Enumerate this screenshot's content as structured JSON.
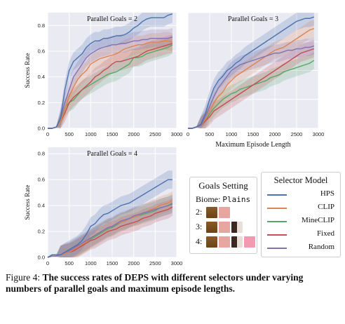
{
  "chart_data": [
    {
      "type": "line",
      "title": "Parallel Goals = 2",
      "xlabel": "",
      "ylabel": "Success Rate",
      "xlim": [
        0,
        3000
      ],
      "ylim": [
        0,
        0.9
      ],
      "xticks": [
        "0",
        "500",
        "1000",
        "1500",
        "2000",
        "2500",
        "3000"
      ],
      "yticks": [
        "0.0",
        "0.2",
        "0.4",
        "0.6",
        "0.8"
      ],
      "x": [
        0,
        100,
        200,
        300,
        400,
        500,
        600,
        700,
        800,
        900,
        1000,
        1100,
        1200,
        1300,
        1400,
        1500,
        1600,
        1700,
        1800,
        1900,
        2000,
        2100,
        2200,
        2300,
        2400,
        2500,
        2600,
        2700,
        2800,
        2900
      ],
      "series": [
        {
          "name": "HPS",
          "values": [
            0,
            0,
            0.01,
            0.08,
            0.3,
            0.45,
            0.52,
            0.55,
            0.58,
            0.63,
            0.66,
            0.68,
            0.68,
            0.7,
            0.7,
            0.71,
            0.72,
            0.72,
            0.73,
            0.75,
            0.78,
            0.8,
            0.83,
            0.85,
            0.86,
            0.86,
            0.86,
            0.86,
            0.88,
            0.89
          ]
        },
        {
          "name": "CLIP",
          "values": [
            0,
            0,
            0.01,
            0.05,
            0.15,
            0.25,
            0.32,
            0.38,
            0.42,
            0.45,
            0.5,
            0.52,
            0.54,
            0.55,
            0.56,
            0.57,
            0.58,
            0.6,
            0.62,
            0.63,
            0.64,
            0.65,
            0.65,
            0.66,
            0.67,
            0.67,
            0.67,
            0.68,
            0.68,
            0.67
          ]
        },
        {
          "name": "MineCLIP",
          "values": [
            0,
            0,
            0.01,
            0.06,
            0.16,
            0.2,
            0.22,
            0.26,
            0.3,
            0.32,
            0.34,
            0.36,
            0.38,
            0.4,
            0.42,
            0.43,
            0.44,
            0.46,
            0.48,
            0.5,
            0.55,
            0.55,
            0.56,
            0.58,
            0.59,
            0.6,
            0.61,
            0.62,
            0.63,
            0.65
          ]
        },
        {
          "name": "Fixed",
          "values": [
            0,
            0,
            0.01,
            0.05,
            0.12,
            0.2,
            0.24,
            0.27,
            0.3,
            0.33,
            0.36,
            0.4,
            0.42,
            0.45,
            0.47,
            0.5,
            0.52,
            0.52,
            0.53,
            0.54,
            0.55,
            0.56,
            0.58,
            0.6,
            0.61,
            0.62,
            0.63,
            0.64,
            0.65,
            0.66
          ]
        },
        {
          "name": "Random",
          "values": [
            0,
            0,
            0.01,
            0.08,
            0.2,
            0.3,
            0.4,
            0.45,
            0.5,
            0.55,
            0.58,
            0.6,
            0.62,
            0.63,
            0.64,
            0.65,
            0.65,
            0.66,
            0.66,
            0.67,
            0.68,
            0.68,
            0.69,
            0.69,
            0.7,
            0.7,
            0.7,
            0.7,
            0.7,
            0.71
          ]
        }
      ]
    },
    {
      "type": "line",
      "title": "Parallel Goals = 3",
      "xlabel": "Maximum Episode Length",
      "ylabel": "",
      "xlim": [
        0,
        3000
      ],
      "ylim": [
        0,
        0.8
      ],
      "xticks": [
        "0",
        "500",
        "1000",
        "1500",
        "2000",
        "2500",
        "3000"
      ],
      "yticks": [],
      "x": [
        0,
        100,
        200,
        300,
        400,
        500,
        600,
        700,
        800,
        900,
        1000,
        1100,
        1200,
        1300,
        1400,
        1500,
        1600,
        1700,
        1800,
        1900,
        2000,
        2100,
        2200,
        2300,
        2400,
        2500,
        2600,
        2700,
        2800,
        2900
      ],
      "series": [
        {
          "name": "HPS",
          "values": [
            0,
            0,
            0.01,
            0.03,
            0.1,
            0.2,
            0.28,
            0.33,
            0.36,
            0.4,
            0.42,
            0.45,
            0.47,
            0.5,
            0.52,
            0.54,
            0.56,
            0.58,
            0.6,
            0.62,
            0.64,
            0.66,
            0.68,
            0.7,
            0.72,
            0.74,
            0.75,
            0.76,
            0.76,
            0.77
          ]
        },
        {
          "name": "CLIP",
          "values": [
            0,
            0,
            0.01,
            0.02,
            0.06,
            0.12,
            0.18,
            0.22,
            0.25,
            0.3,
            0.33,
            0.36,
            0.38,
            0.4,
            0.42,
            0.44,
            0.46,
            0.48,
            0.5,
            0.52,
            0.54,
            0.55,
            0.56,
            0.58,
            0.6,
            0.62,
            0.64,
            0.66,
            0.68,
            0.69
          ]
        },
        {
          "name": "MineCLIP",
          "values": [
            0,
            0,
            0.01,
            0.02,
            0.05,
            0.1,
            0.14,
            0.17,
            0.2,
            0.22,
            0.24,
            0.25,
            0.27,
            0.28,
            0.29,
            0.3,
            0.31,
            0.32,
            0.33,
            0.35,
            0.36,
            0.37,
            0.39,
            0.4,
            0.41,
            0.42,
            0.43,
            0.44,
            0.45,
            0.47
          ]
        },
        {
          "name": "Fixed",
          "values": [
            0,
            0,
            0.01,
            0.02,
            0.05,
            0.08,
            0.12,
            0.14,
            0.16,
            0.18,
            0.2,
            0.22,
            0.24,
            0.26,
            0.28,
            0.3,
            0.32,
            0.34,
            0.36,
            0.38,
            0.4,
            0.42,
            0.44,
            0.46,
            0.48,
            0.5,
            0.52,
            0.53,
            0.54,
            0.55
          ]
        },
        {
          "name": "Random",
          "values": [
            0,
            0,
            0.01,
            0.02,
            0.08,
            0.15,
            0.22,
            0.28,
            0.32,
            0.36,
            0.4,
            0.42,
            0.44,
            0.45,
            0.46,
            0.47,
            0.48,
            0.49,
            0.5,
            0.51,
            0.52,
            0.52,
            0.53,
            0.54,
            0.54,
            0.55,
            0.55,
            0.56,
            0.56,
            0.57
          ]
        }
      ]
    },
    {
      "type": "line",
      "title": "Parallel Goals = 4",
      "xlabel": "",
      "ylabel": "Success Rate",
      "xlim": [
        0,
        3000
      ],
      "ylim": [
        0,
        0.85
      ],
      "xticks": [
        "0",
        "500",
        "1000",
        "1500",
        "2000",
        "2500",
        "3000"
      ],
      "yticks": [
        "0.0",
        "0.2",
        "0.4",
        "0.6",
        "0.8"
      ],
      "x": [
        0,
        100,
        200,
        300,
        400,
        500,
        600,
        700,
        800,
        900,
        1000,
        1100,
        1200,
        1300,
        1400,
        1500,
        1600,
        1700,
        1800,
        1900,
        2000,
        2100,
        2200,
        2300,
        2400,
        2500,
        2600,
        2700,
        2800,
        2900
      ],
      "series": [
        {
          "name": "HPS",
          "values": [
            0,
            0.02,
            0.02,
            0.02,
            0.04,
            0.06,
            0.08,
            0.1,
            0.13,
            0.18,
            0.24,
            0.26,
            0.3,
            0.33,
            0.34,
            0.36,
            0.38,
            0.4,
            0.41,
            0.42,
            0.44,
            0.46,
            0.48,
            0.5,
            0.52,
            0.54,
            0.56,
            0.58,
            0.6,
            0.6
          ]
        },
        {
          "name": "CLIP",
          "values": [
            0,
            0.01,
            0.01,
            0.02,
            0.03,
            0.04,
            0.06,
            0.08,
            0.1,
            0.12,
            0.15,
            0.17,
            0.19,
            0.21,
            0.23,
            0.24,
            0.26,
            0.27,
            0.28,
            0.3,
            0.31,
            0.32,
            0.34,
            0.35,
            0.37,
            0.38,
            0.4,
            0.41,
            0.42,
            0.44
          ]
        },
        {
          "name": "MineCLIP",
          "values": [
            0,
            0.01,
            0.01,
            0.02,
            0.03,
            0.04,
            0.06,
            0.08,
            0.1,
            0.12,
            0.14,
            0.16,
            0.18,
            0.2,
            0.22,
            0.23,
            0.25,
            0.27,
            0.28,
            0.3,
            0.31,
            0.32,
            0.33,
            0.34,
            0.35,
            0.36,
            0.38,
            0.39,
            0.4,
            0.42
          ]
        },
        {
          "name": "Fixed",
          "values": [
            0,
            0.01,
            0.01,
            0.02,
            0.03,
            0.04,
            0.05,
            0.07,
            0.09,
            0.11,
            0.13,
            0.14,
            0.16,
            0.18,
            0.2,
            0.21,
            0.22,
            0.24,
            0.25,
            0.26,
            0.27,
            0.28,
            0.3,
            0.31,
            0.32,
            0.34,
            0.35,
            0.36,
            0.37,
            0.39
          ]
        },
        {
          "name": "Random",
          "values": [
            0,
            0.01,
            0.01,
            0.02,
            0.04,
            0.05,
            0.07,
            0.09,
            0.11,
            0.13,
            0.15,
            0.17,
            0.19,
            0.21,
            0.23,
            0.24,
            0.26,
            0.28,
            0.29,
            0.3,
            0.32,
            0.33,
            0.34,
            0.35,
            0.36,
            0.37,
            0.38,
            0.39,
            0.4,
            0.41
          ]
        }
      ]
    }
  ],
  "colors": {
    "HPS": "#4c72b0",
    "CLIP": "#dd8452",
    "MineCLIP": "#55a868",
    "Fixed": "#c44e52",
    "Random": "#8172b3",
    "panel_bg": "#eaeaf2",
    "grid": "#ffffff"
  },
  "legend": {
    "title": "Selector Model",
    "placement": "bottom-right",
    "items": [
      "HPS",
      "CLIP",
      "MineCLIP",
      "Fixed",
      "Random"
    ]
  },
  "goals_setting": {
    "title": "Goals Setting",
    "biome_label": "Biome:",
    "biome_value": "Plains",
    "rows": [
      {
        "label": "2:",
        "icons": [
          "log-icon",
          "pig-icon"
        ]
      },
      {
        "label": "3:",
        "icons": [
          "log-icon",
          "pig-icon",
          "cow-icon"
        ]
      },
      {
        "label": "4:",
        "icons": [
          "log-icon",
          "pig-icon",
          "cow-icon",
          "pink-pig-icon"
        ]
      }
    ]
  },
  "caption": {
    "prefix": "Figure 4:",
    "bold": "The success rates of DEPS with different selectors under varying numbers of parallel goals and maximum episode lengths."
  }
}
